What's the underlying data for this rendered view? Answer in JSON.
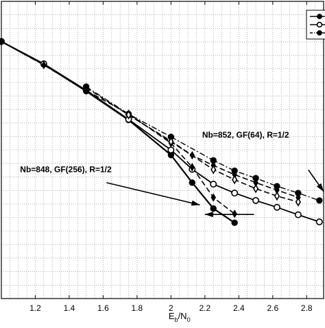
{
  "chart_data": {
    "type": "line",
    "title": "",
    "xlabel_main": "E",
    "xlabel_sub1": "b",
    "xlabel_slash": "/N",
    "xlabel_sub2": "0",
    "ylabel": "",
    "xlim": [
      1.0,
      2.9
    ],
    "ylim": [
      0,
      1
    ],
    "y_note": "vertical axis: relative position (0 = bottom, 1 = top); tick labels cropped out of view",
    "grid": true,
    "legend_position": "top-right",
    "x_ticks": [
      1.2,
      1.4,
      1.6,
      1.8,
      2,
      2.2,
      2.4,
      2.6,
      2.8
    ],
    "x_tick_labels": [
      "1.2",
      "1.4",
      "1.6",
      "1.8",
      "2",
      "2.2",
      "2.4",
      "2.6",
      "2.8"
    ],
    "series": [
      {
        "marker": "filled-circle",
        "line": "solid",
        "width": 2.2,
        "x": [
          1.0,
          1.25,
          1.5,
          1.75,
          2.0,
          2.125,
          2.25,
          2.375
        ],
        "y": [
          0.865,
          0.788,
          0.698,
          0.601,
          0.483,
          0.39,
          0.303,
          0.255
        ]
      },
      {
        "marker": "open-circle",
        "line": "solid",
        "width": 1.8,
        "x": [
          1.0,
          1.25,
          1.5,
          1.75,
          2.0,
          2.125,
          2.25,
          2.375,
          2.5,
          2.625,
          2.75,
          2.875
        ],
        "y": [
          0.865,
          0.79,
          0.701,
          0.603,
          0.5,
          0.435,
          0.385,
          0.355,
          0.33,
          0.307,
          0.282,
          0.258
        ]
      },
      {
        "marker": "filled-circle",
        "line": "dash-dot",
        "width": 1.4,
        "x": [
          1.5,
          1.75,
          2.0,
          2.25,
          2.375,
          2.5,
          2.625,
          2.75,
          2.875
        ],
        "y": [
          0.713,
          0.621,
          0.544,
          0.465,
          0.43,
          0.405,
          0.378,
          0.355,
          0.33
        ]
      },
      {
        "marker": "filled-diamond",
        "line": "dashed",
        "width": 1.6,
        "x": [
          1.0,
          1.25,
          1.5,
          1.75,
          2.0,
          2.125,
          2.25,
          2.375
        ],
        "y": [
          0.865,
          0.786,
          0.7,
          0.622,
          0.523,
          0.442,
          0.34,
          0.285
        ]
      },
      {
        "marker": "filled-diamond",
        "line": "dashed",
        "width": 1.6,
        "x": [
          1.5,
          1.75,
          2.0,
          2.125,
          2.25,
          2.375,
          2.5,
          2.625,
          2.75
        ],
        "y": [
          0.71,
          0.618,
          0.53,
          0.482,
          0.448,
          0.417,
          0.39,
          0.365,
          0.34
        ]
      },
      {
        "marker": "open-diamond",
        "line": "dashed",
        "width": 1.6,
        "x": [
          1.75,
          2.0,
          2.25,
          2.375,
          2.5,
          2.625,
          2.75
        ],
        "y": [
          0.618,
          0.528,
          0.434,
          0.4,
          0.37,
          0.345,
          0.325
        ]
      }
    ],
    "annotations": [
      {
        "text": "Nb=852, GF(64), R=1/2",
        "x": 2.44,
        "y": 0.542
      },
      {
        "text": "Nb=848, GF(256), R=1/2",
        "x": 1.38,
        "y": 0.425
      }
    ],
    "arrows": [
      {
        "x1": 1.62,
        "y1": 0.39,
        "x2": 2.17,
        "y2": 0.315
      },
      {
        "x1": 2.49,
        "y1": 0.283,
        "x2": 2.2,
        "y2": 0.283
      },
      {
        "x1": 2.81,
        "y1": 0.433,
        "x2": 2.9,
        "y2": 0.36
      }
    ],
    "legend_entries": [
      {
        "marker": "filled-circle",
        "line": "solid"
      },
      {
        "marker": "open-circle",
        "line": "solid"
      },
      {
        "marker": "filled-circle",
        "line": "dash-dot"
      }
    ]
  }
}
